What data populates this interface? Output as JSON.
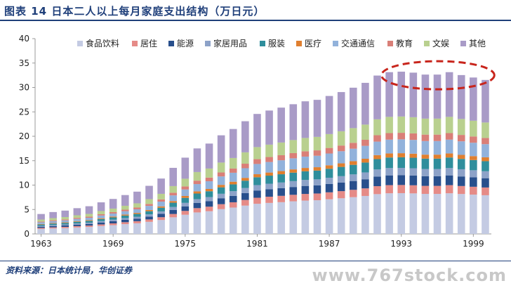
{
  "header": {
    "title": "图表 14   日本二人以上每月家庭支出结构（万日元）"
  },
  "footer": {
    "source": "资料来源：日本统计局，华创证券",
    "watermark": "www.767stock.com"
  },
  "chart_data": {
    "type": "bar",
    "stacked": true,
    "title": "",
    "xlabel": "",
    "ylabel": "",
    "ylim": [
      0,
      40
    ],
    "yticks": [
      0,
      5,
      10,
      15,
      20,
      25,
      30,
      35,
      40
    ],
    "x": [
      1963,
      1964,
      1965,
      1966,
      1967,
      1968,
      1969,
      1970,
      1971,
      1972,
      1973,
      1974,
      1975,
      1976,
      1977,
      1978,
      1979,
      1980,
      1981,
      1982,
      1983,
      1984,
      1985,
      1986,
      1987,
      1988,
      1989,
      1990,
      1991,
      1992,
      1993,
      1994,
      1995,
      1996,
      1997,
      1998,
      1999,
      2000
    ],
    "xtick_labels": [
      "1963",
      "1969",
      "1975",
      "1981",
      "1987",
      "1993",
      "1999"
    ],
    "totals": [
      4.1,
      4.5,
      4.8,
      5.3,
      5.7,
      6.5,
      7.2,
      8.0,
      8.7,
      9.9,
      11.4,
      13.6,
      15.7,
      17.6,
      18.6,
      20.3,
      21.6,
      23.2,
      24.7,
      25.4,
      26.0,
      26.7,
      27.3,
      27.6,
      28.4,
      29.2,
      30.1,
      31.1,
      32.6,
      33.3,
      33.4,
      33.2,
      32.8,
      32.8,
      33.3,
      32.7,
      32.2,
      31.7
    ],
    "series": [
      {
        "name": "食品饮料",
        "color": "#c4cbe3",
        "share": 0.25
      },
      {
        "name": "居住",
        "color": "#e58b87",
        "share": 0.05
      },
      {
        "name": "能源",
        "color": "#284f8c",
        "share": 0.06
      },
      {
        "name": "家居用品",
        "color": "#8da2c8",
        "share": 0.045
      },
      {
        "name": "服装",
        "color": "#2f8e9c",
        "share": 0.065
      },
      {
        "name": "医疗",
        "color": "#e07f2f",
        "share": 0.025
      },
      {
        "name": "交通通信",
        "color": "#92b2db",
        "share": 0.085
      },
      {
        "name": "教育",
        "color": "#d97f78",
        "share": 0.04
      },
      {
        "name": "文娱",
        "color": "#b9d08f",
        "share": 0.1
      },
      {
        "name": "其他",
        "color": "#a99bc7",
        "share": 0.275
      }
    ],
    "legend_position": "top-right",
    "annotation": "red dashed ellipse around 1992-2000 bars",
    "grid": false
  }
}
